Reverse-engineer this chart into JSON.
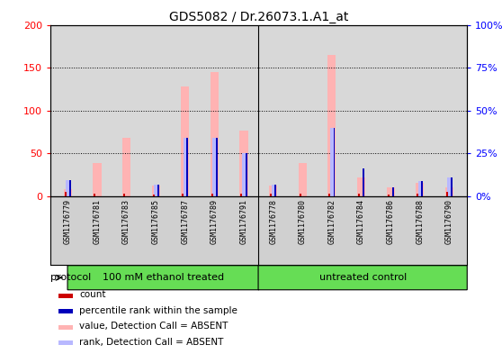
{
  "title": "GDS5082 / Dr.26073.1.A1_at",
  "samples": [
    "GSM1176779",
    "GSM1176781",
    "GSM1176783",
    "GSM1176785",
    "GSM1176787",
    "GSM1176789",
    "GSM1176791",
    "GSM1176778",
    "GSM1176780",
    "GSM1176782",
    "GSM1176784",
    "GSM1176786",
    "GSM1176788",
    "GSM1176790"
  ],
  "value_absent": [
    8,
    38,
    68,
    12,
    128,
    145,
    76,
    12,
    38,
    165,
    22,
    10,
    15,
    10
  ],
  "rank_absent": [
    18,
    0,
    0,
    13,
    68,
    68,
    50,
    13,
    0,
    80,
    0,
    0,
    17,
    22
  ],
  "count_red": [
    5,
    3,
    3,
    2,
    3,
    3,
    3,
    3,
    3,
    3,
    3,
    2,
    3,
    5
  ],
  "rank_blue": [
    18,
    0,
    0,
    13,
    68,
    68,
    50,
    13,
    0,
    80,
    32,
    10,
    17,
    22
  ],
  "group1_label": "100 mM ethanol treated",
  "group2_label": "untreated control",
  "group1_count": 7,
  "group2_count": 7,
  "ylim_left": [
    0,
    200
  ],
  "ylim_right": [
    0,
    100
  ],
  "yticks_left": [
    0,
    50,
    100,
    150,
    200
  ],
  "yticks_right": [
    0,
    25,
    50,
    75,
    100
  ],
  "ytick_labels_right": [
    "0%",
    "25%",
    "50%",
    "75%",
    "100%"
  ],
  "color_value_absent": "#ffb3b3",
  "color_rank_absent": "#b8b8ff",
  "color_count": "#cc0000",
  "color_rank": "#0000bb",
  "protocol_label": "protocol",
  "bg_plot": "#d8d8d8",
  "bg_label_area": "#d0d0d0",
  "bg_group": "#66dd55",
  "legend_items": [
    {
      "label": "count",
      "color": "#cc0000"
    },
    {
      "label": "percentile rank within the sample",
      "color": "#0000bb"
    },
    {
      "label": "value, Detection Call = ABSENT",
      "color": "#ffb3b3"
    },
    {
      "label": "rank, Detection Call = ABSENT",
      "color": "#b8b8ff"
    }
  ]
}
